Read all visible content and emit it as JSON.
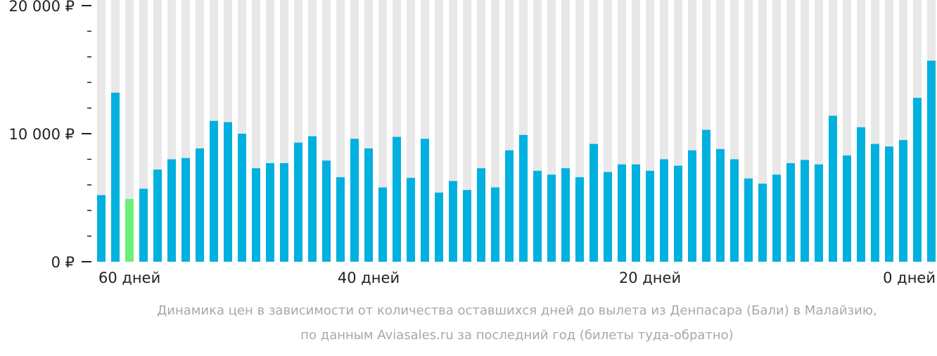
{
  "chart_data": {
    "type": "bar",
    "categories": [
      "60 дней",
      null,
      null,
      null,
      null,
      null,
      null,
      null,
      null,
      null,
      null,
      null,
      null,
      null,
      null,
      null,
      null,
      null,
      null,
      "40 дней",
      null,
      null,
      null,
      null,
      null,
      null,
      null,
      null,
      null,
      null,
      null,
      null,
      null,
      null,
      null,
      null,
      null,
      null,
      null,
      "20 дней",
      null,
      null,
      null,
      null,
      null,
      null,
      null,
      null,
      null,
      null,
      null,
      null,
      null,
      null,
      null,
      null,
      null,
      null,
      null,
      "0 дней"
    ],
    "values": [
      5200,
      13200,
      4900,
      5700,
      7200,
      8000,
      8100,
      8850,
      11000,
      10900,
      10000,
      7300,
      7700,
      7700,
      9300,
      9800,
      7900,
      6600,
      9600,
      8850,
      5800,
      9750,
      6550,
      9600,
      5400,
      6300,
      5600,
      7300,
      5800,
      8700,
      9900,
      7100,
      6800,
      7300,
      6600,
      9200,
      7000,
      7600,
      7600,
      7100,
      8000,
      7500,
      8700,
      10300,
      8800,
      8000,
      6500,
      6100,
      6800,
      7700,
      7950,
      7600,
      11400,
      8300,
      10500,
      9200,
      9000,
      9500,
      12800,
      15700
    ],
    "color": "#00b0de",
    "highlight": 2,
    "highlight_color": "#6af07a",
    "ylim": [
      0,
      20000
    ],
    "yticks": [
      {
        "value": 0,
        "label": "0 ₽"
      },
      {
        "value": 10000,
        "label": "10 000 ₽"
      },
      {
        "value": 20000,
        "label": "20 000 ₽"
      }
    ],
    "yminorticks": [
      2000,
      4000,
      6000,
      8000,
      12000,
      14000,
      16000,
      18000
    ],
    "caption": [
      "Динамика цен в зависимости от количества оставшихся дней до вылета из Денпасара (Бали) в Малайзию,",
      "по данным Aviasales.ru за последний год (билеты туда-обратно)"
    ]
  }
}
